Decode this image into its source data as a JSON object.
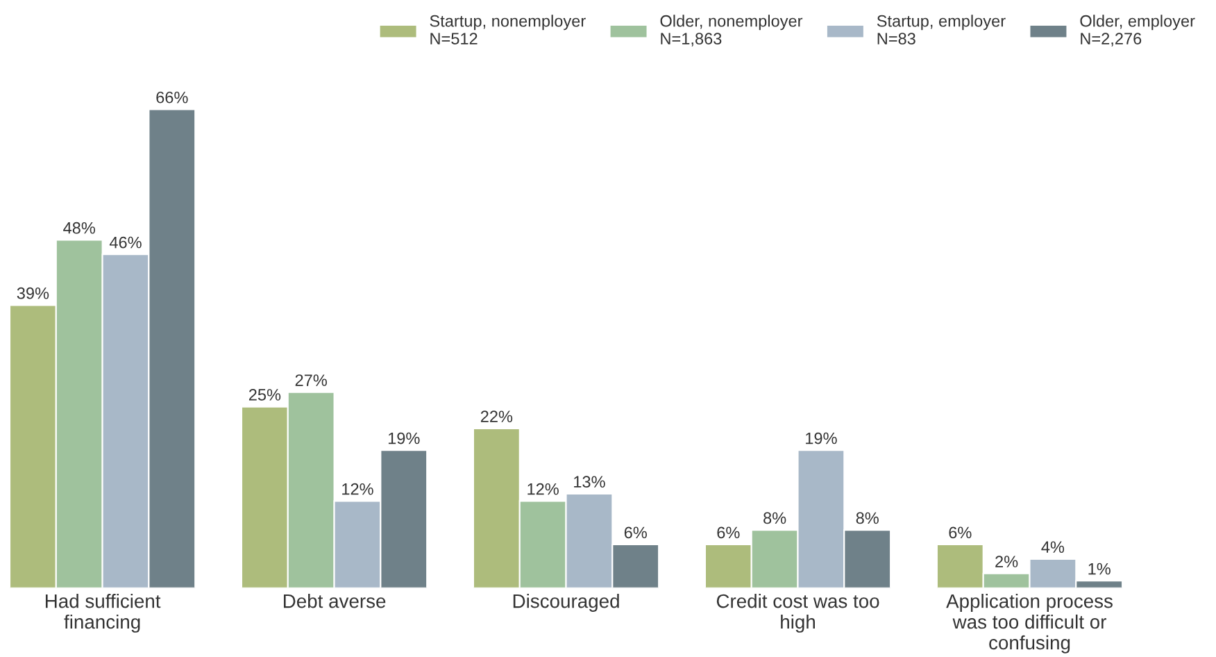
{
  "chart_data": {
    "type": "bar",
    "categories": [
      "Had sufficient\nfinancing",
      "Debt averse",
      "Discouraged",
      "Credit cost was too\nhigh",
      "Application process\nwas too difficult or\nconfusing"
    ],
    "series": [
      {
        "name": "Startup, nonemployer\nN=512",
        "color": "#adbc7c",
        "values": [
          39,
          25,
          22,
          6,
          6
        ],
        "value_labels": [
          "39%",
          "25%",
          "22%",
          "6%",
          "6%"
        ]
      },
      {
        "name": "Older, nonemployer\nN=1,863",
        "color": "#9fc29d",
        "values": [
          48,
          27,
          12,
          8,
          2
        ],
        "value_labels": [
          "48%",
          "27%",
          "12%",
          "8%",
          "2%"
        ]
      },
      {
        "name": "Startup, employer\nN=83",
        "color": "#a8b8c8",
        "values": [
          46,
          12,
          13,
          19,
          4
        ],
        "value_labels": [
          "46%",
          "12%",
          "13%",
          "19%",
          "4%"
        ]
      },
      {
        "name": "Older, employer\nN=2,276",
        "color": "#6f8189",
        "values": [
          66,
          19,
          6,
          8,
          1
        ],
        "value_labels": [
          "66%",
          "19%",
          "6%",
          "8%",
          "1%"
        ]
      }
    ],
    "legend": "top right",
    "grid": false
  }
}
